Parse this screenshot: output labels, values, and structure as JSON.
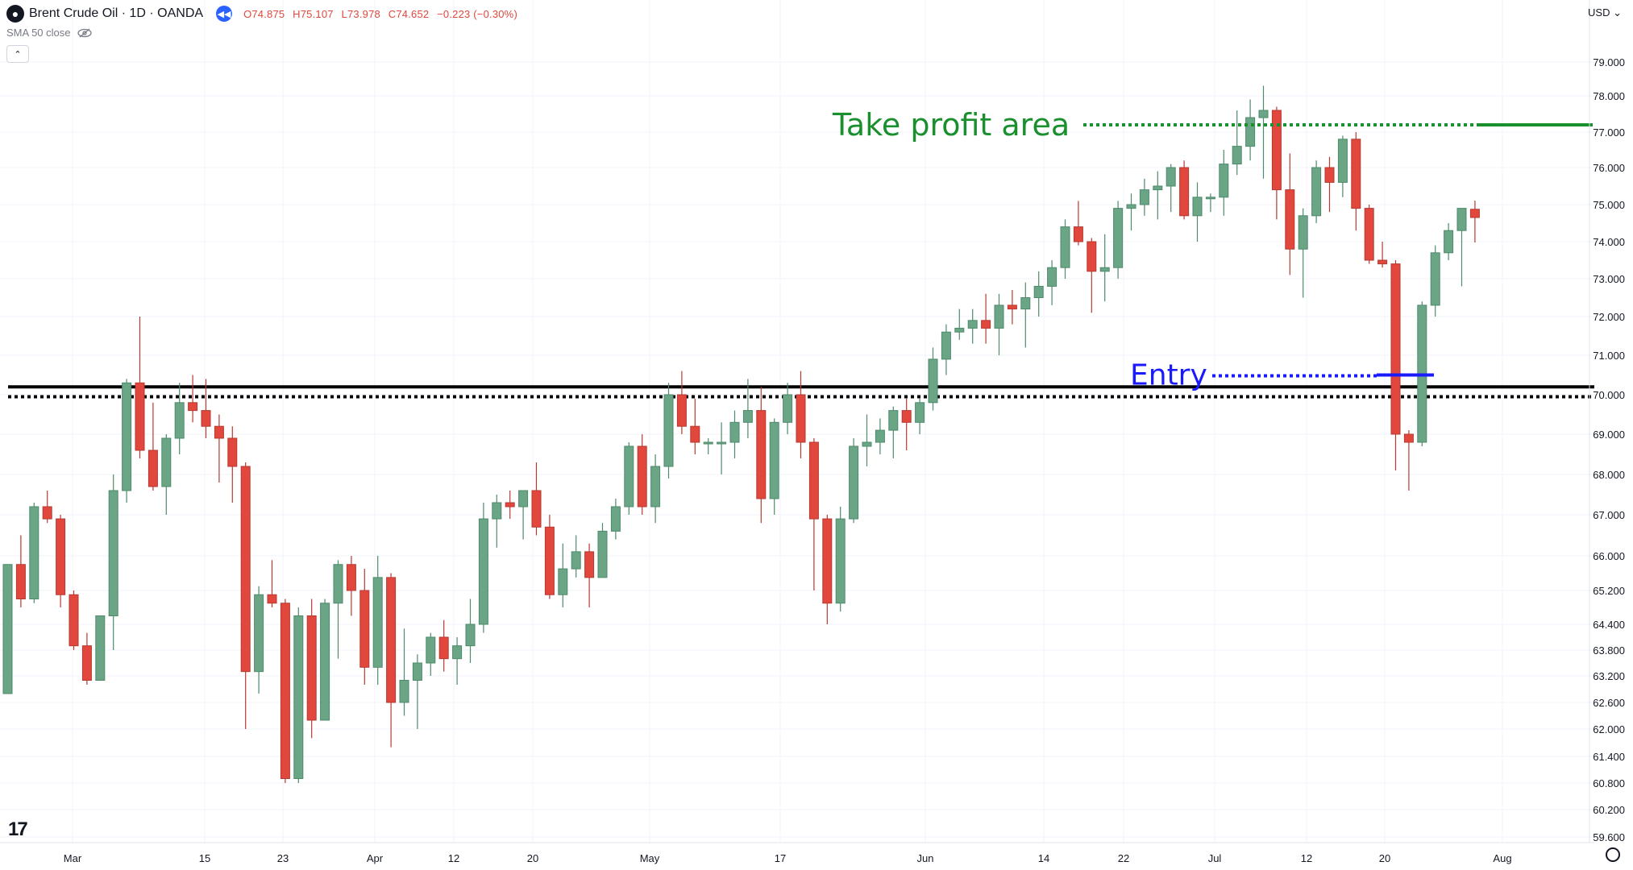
{
  "header": {
    "title": "Brent Crude Oil · 1D · OANDA",
    "open": "O74.875",
    "high": "H75.107",
    "low": "L73.978",
    "close": "C74.652",
    "change": "−0.223 (−0.30%)"
  },
  "indicator": {
    "label": "SMA 50 close"
  },
  "currency": "USD",
  "colors": {
    "up": "#6aa586",
    "down": "#e1473c",
    "take_profit": "#1a8f2e",
    "entry": "#1a1aff",
    "level": "#000000"
  },
  "chart_data": {
    "type": "candlestick",
    "y_ticks": [
      "79.000",
      "78.000",
      "77.000",
      "76.000",
      "75.000",
      "74.000",
      "73.000",
      "72.000",
      "71.000",
      "70.000",
      "69.000",
      "68.000",
      "67.000",
      "66.000",
      "65.200",
      "64.400",
      "63.800",
      "63.200",
      "62.600",
      "62.000",
      "61.400",
      "60.800",
      "60.200",
      "59.600"
    ],
    "x_labels": [
      "Mar",
      "15",
      "23",
      "Apr",
      "12",
      "20",
      "May",
      "17",
      "Jun",
      "14",
      "22",
      "Jul",
      "12",
      "20",
      "Aug"
    ],
    "annotations": {
      "take_profit": {
        "label": "Take profit area",
        "price": 77.2
      },
      "entry": {
        "label": "Entry",
        "price": 70.5
      },
      "resistance_solid": 70.2,
      "resistance_dotted": 69.95
    },
    "candles": [
      {
        "o": 62.8,
        "h": 65.8,
        "l": 62.8,
        "c": 65.8
      },
      {
        "o": 65.8,
        "h": 66.5,
        "l": 64.8,
        "c": 65.0
      },
      {
        "o": 65.0,
        "h": 67.3,
        "l": 64.9,
        "c": 67.2
      },
      {
        "o": 67.2,
        "h": 67.6,
        "l": 66.8,
        "c": 66.9
      },
      {
        "o": 66.9,
        "h": 67.0,
        "l": 64.8,
        "c": 65.1
      },
      {
        "o": 65.1,
        "h": 65.2,
        "l": 63.8,
        "c": 63.9
      },
      {
        "o": 63.9,
        "h": 64.2,
        "l": 63.0,
        "c": 63.1
      },
      {
        "o": 63.1,
        "h": 64.6,
        "l": 63.1,
        "c": 64.6
      },
      {
        "o": 64.6,
        "h": 68.0,
        "l": 63.8,
        "c": 67.6
      },
      {
        "o": 67.6,
        "h": 70.4,
        "l": 67.3,
        "c": 70.3
      },
      {
        "o": 70.3,
        "h": 72.0,
        "l": 68.4,
        "c": 68.6
      },
      {
        "o": 68.6,
        "h": 69.8,
        "l": 67.6,
        "c": 67.7
      },
      {
        "o": 67.7,
        "h": 69.0,
        "l": 67.0,
        "c": 68.9
      },
      {
        "o": 68.9,
        "h": 70.3,
        "l": 68.5,
        "c": 69.8
      },
      {
        "o": 69.8,
        "h": 70.5,
        "l": 69.3,
        "c": 69.6
      },
      {
        "o": 69.6,
        "h": 70.4,
        "l": 68.9,
        "c": 69.2
      },
      {
        "o": 69.2,
        "h": 69.5,
        "l": 67.8,
        "c": 68.9
      },
      {
        "o": 68.9,
        "h": 69.2,
        "l": 67.3,
        "c": 68.2
      },
      {
        "o": 68.2,
        "h": 68.3,
        "l": 62.0,
        "c": 63.3
      },
      {
        "o": 63.3,
        "h": 65.3,
        "l": 62.8,
        "c": 65.1
      },
      {
        "o": 65.1,
        "h": 65.9,
        "l": 64.8,
        "c": 64.9
      },
      {
        "o": 64.9,
        "h": 65.0,
        "l": 60.8,
        "c": 60.9
      },
      {
        "o": 60.9,
        "h": 64.8,
        "l": 60.8,
        "c": 64.6
      },
      {
        "o": 64.6,
        "h": 65.0,
        "l": 61.8,
        "c": 62.2
      },
      {
        "o": 62.2,
        "h": 65.0,
        "l": 62.2,
        "c": 64.9
      },
      {
        "o": 64.9,
        "h": 65.9,
        "l": 63.6,
        "c": 65.8
      },
      {
        "o": 65.8,
        "h": 66.0,
        "l": 64.6,
        "c": 65.2
      },
      {
        "o": 65.2,
        "h": 65.7,
        "l": 63.0,
        "c": 63.4
      },
      {
        "o": 63.4,
        "h": 66.0,
        "l": 63.0,
        "c": 65.5
      },
      {
        "o": 65.5,
        "h": 65.6,
        "l": 61.6,
        "c": 62.6
      },
      {
        "o": 62.6,
        "h": 64.3,
        "l": 62.3,
        "c": 63.1
      },
      {
        "o": 63.1,
        "h": 63.7,
        "l": 62.0,
        "c": 63.5
      },
      {
        "o": 63.5,
        "h": 64.2,
        "l": 63.2,
        "c": 64.1
      },
      {
        "o": 64.1,
        "h": 64.5,
        "l": 63.3,
        "c": 63.6
      },
      {
        "o": 63.6,
        "h": 64.1,
        "l": 63.0,
        "c": 63.9
      },
      {
        "o": 63.9,
        "h": 65.0,
        "l": 63.5,
        "c": 64.4
      },
      {
        "o": 64.4,
        "h": 67.3,
        "l": 64.2,
        "c": 66.9
      },
      {
        "o": 66.9,
        "h": 67.5,
        "l": 66.2,
        "c": 67.3
      },
      {
        "o": 67.3,
        "h": 67.6,
        "l": 66.9,
        "c": 67.2
      },
      {
        "o": 67.2,
        "h": 67.5,
        "l": 66.4,
        "c": 67.6
      },
      {
        "o": 67.6,
        "h": 68.3,
        "l": 66.5,
        "c": 66.7
      },
      {
        "o": 66.7,
        "h": 67.0,
        "l": 65.0,
        "c": 65.1
      },
      {
        "o": 65.1,
        "h": 66.3,
        "l": 64.8,
        "c": 65.7
      },
      {
        "o": 65.7,
        "h": 66.5,
        "l": 65.5,
        "c": 66.1
      },
      {
        "o": 66.1,
        "h": 66.3,
        "l": 64.8,
        "c": 65.5
      },
      {
        "o": 65.5,
        "h": 66.8,
        "l": 65.5,
        "c": 66.6
      },
      {
        "o": 66.6,
        "h": 67.4,
        "l": 66.4,
        "c": 67.2
      },
      {
        "o": 67.2,
        "h": 68.8,
        "l": 67.0,
        "c": 68.7
      },
      {
        "o": 68.7,
        "h": 69.0,
        "l": 67.0,
        "c": 67.2
      },
      {
        "o": 67.2,
        "h": 68.5,
        "l": 66.8,
        "c": 68.2
      },
      {
        "o": 68.2,
        "h": 70.3,
        "l": 67.9,
        "c": 70.0
      },
      {
        "o": 70.0,
        "h": 70.6,
        "l": 69.0,
        "c": 69.2
      },
      {
        "o": 69.2,
        "h": 69.9,
        "l": 68.5,
        "c": 68.8
      },
      {
        "o": 68.8,
        "h": 68.9,
        "l": 68.5,
        "c": 68.8
      },
      {
        "o": 68.8,
        "h": 69.3,
        "l": 68.0,
        "c": 68.8
      },
      {
        "o": 68.8,
        "h": 69.6,
        "l": 68.4,
        "c": 69.3
      },
      {
        "o": 69.3,
        "h": 70.4,
        "l": 68.9,
        "c": 69.6
      },
      {
        "o": 69.6,
        "h": 70.2,
        "l": 66.8,
        "c": 67.4
      },
      {
        "o": 67.4,
        "h": 69.4,
        "l": 67.0,
        "c": 69.3
      },
      {
        "o": 69.3,
        "h": 70.3,
        "l": 69.0,
        "c": 70.0
      },
      {
        "o": 70.0,
        "h": 70.6,
        "l": 68.4,
        "c": 68.8
      },
      {
        "o": 68.8,
        "h": 68.9,
        "l": 65.2,
        "c": 66.9
      },
      {
        "o": 66.9,
        "h": 67.0,
        "l": 64.4,
        "c": 64.9
      },
      {
        "o": 64.9,
        "h": 67.2,
        "l": 64.7,
        "c": 66.9
      },
      {
        "o": 66.9,
        "h": 68.9,
        "l": 66.8,
        "c": 68.7
      },
      {
        "o": 68.7,
        "h": 69.5,
        "l": 68.2,
        "c": 68.8
      },
      {
        "o": 68.8,
        "h": 69.4,
        "l": 68.5,
        "c": 69.1
      },
      {
        "o": 69.1,
        "h": 69.7,
        "l": 68.4,
        "c": 69.6
      },
      {
        "o": 69.6,
        "h": 69.9,
        "l": 68.6,
        "c": 69.3
      },
      {
        "o": 69.3,
        "h": 69.9,
        "l": 69.0,
        "c": 69.8
      },
      {
        "o": 69.8,
        "h": 71.2,
        "l": 69.6,
        "c": 70.9
      },
      {
        "o": 70.9,
        "h": 71.8,
        "l": 70.5,
        "c": 71.6
      },
      {
        "o": 71.6,
        "h": 72.2,
        "l": 71.4,
        "c": 71.7
      },
      {
        "o": 71.7,
        "h": 72.2,
        "l": 71.3,
        "c": 71.9
      },
      {
        "o": 71.9,
        "h": 72.6,
        "l": 71.3,
        "c": 71.7
      },
      {
        "o": 71.7,
        "h": 72.6,
        "l": 71.0,
        "c": 72.3
      },
      {
        "o": 72.3,
        "h": 72.7,
        "l": 71.8,
        "c": 72.2
      },
      {
        "o": 72.2,
        "h": 72.9,
        "l": 71.2,
        "c": 72.5
      },
      {
        "o": 72.5,
        "h": 73.2,
        "l": 72.0,
        "c": 72.8
      },
      {
        "o": 72.8,
        "h": 73.5,
        "l": 72.3,
        "c": 73.3
      },
      {
        "o": 73.3,
        "h": 74.6,
        "l": 73.0,
        "c": 74.4
      },
      {
        "o": 74.4,
        "h": 75.1,
        "l": 73.9,
        "c": 74.0
      },
      {
        "o": 74.0,
        "h": 74.1,
        "l": 72.1,
        "c": 73.2
      },
      {
        "o": 73.2,
        "h": 74.2,
        "l": 72.4,
        "c": 73.3
      },
      {
        "o": 73.3,
        "h": 75.1,
        "l": 73.0,
        "c": 74.9
      },
      {
        "o": 74.9,
        "h": 75.3,
        "l": 74.3,
        "c": 75.0
      },
      {
        "o": 75.0,
        "h": 75.7,
        "l": 74.7,
        "c": 75.4
      },
      {
        "o": 75.4,
        "h": 75.9,
        "l": 74.6,
        "c": 75.5
      },
      {
        "o": 75.5,
        "h": 76.1,
        "l": 74.8,
        "c": 76.0
      },
      {
        "o": 76.0,
        "h": 76.2,
        "l": 74.6,
        "c": 74.7
      },
      {
        "o": 74.7,
        "h": 75.6,
        "l": 74.0,
        "c": 75.2
      },
      {
        "o": 75.2,
        "h": 75.3,
        "l": 74.8,
        "c": 75.2
      },
      {
        "o": 75.2,
        "h": 76.5,
        "l": 74.7,
        "c": 76.1
      },
      {
        "o": 76.1,
        "h": 77.6,
        "l": 75.8,
        "c": 76.6
      },
      {
        "o": 76.6,
        "h": 77.9,
        "l": 76.2,
        "c": 77.4
      },
      {
        "o": 77.4,
        "h": 78.3,
        "l": 75.7,
        "c": 77.6
      },
      {
        "o": 77.6,
        "h": 77.7,
        "l": 74.6,
        "c": 75.4
      },
      {
        "o": 75.4,
        "h": 76.4,
        "l": 73.1,
        "c": 73.8
      },
      {
        "o": 73.8,
        "h": 74.9,
        "l": 72.5,
        "c": 74.7
      },
      {
        "o": 74.7,
        "h": 76.2,
        "l": 74.5,
        "c": 76.0
      },
      {
        "o": 76.0,
        "h": 76.3,
        "l": 74.8,
        "c": 75.6
      },
      {
        "o": 75.6,
        "h": 76.9,
        "l": 75.2,
        "c": 76.8
      },
      {
        "o": 76.8,
        "h": 77.0,
        "l": 74.3,
        "c": 74.9
      },
      {
        "o": 74.9,
        "h": 75.0,
        "l": 73.4,
        "c": 73.5
      },
      {
        "o": 73.5,
        "h": 74.0,
        "l": 73.3,
        "c": 73.4
      },
      {
        "o": 73.4,
        "h": 73.5,
        "l": 68.1,
        "c": 69.0
      },
      {
        "o": 69.0,
        "h": 69.1,
        "l": 67.6,
        "c": 68.8
      },
      {
        "o": 68.8,
        "h": 72.4,
        "l": 68.7,
        "c": 72.3
      },
      {
        "o": 72.3,
        "h": 73.9,
        "l": 72.0,
        "c": 73.7
      },
      {
        "o": 73.7,
        "h": 74.5,
        "l": 73.5,
        "c": 74.3
      },
      {
        "o": 74.3,
        "h": 74.9,
        "l": 72.8,
        "c": 74.9
      },
      {
        "o": 74.875,
        "h": 75.107,
        "l": 73.978,
        "c": 74.652
      }
    ]
  }
}
